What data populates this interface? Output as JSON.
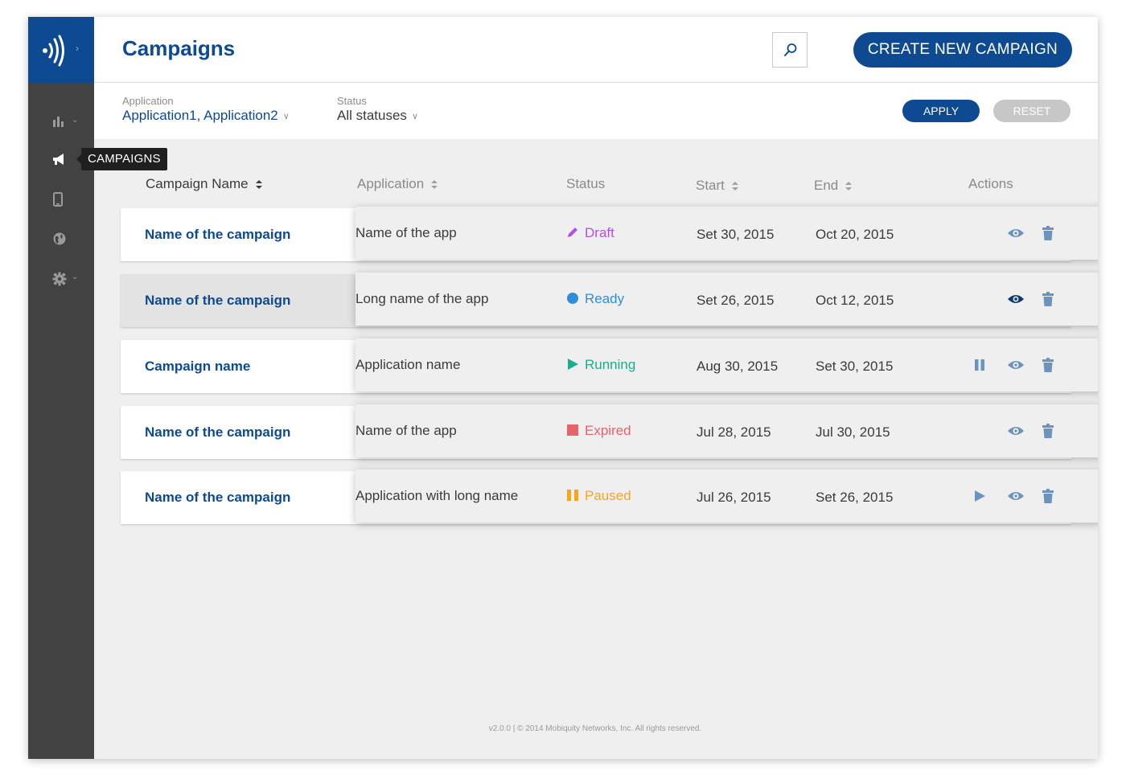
{
  "sidebar": {
    "tooltip": "CAMPAIGNS"
  },
  "header": {
    "title": "Campaigns",
    "create_label": "CREATE NEW CAMPAIGN"
  },
  "filters": {
    "application": {
      "label": "Application",
      "value": "Application1, Application2"
    },
    "status": {
      "label": "Status",
      "value": "All statuses"
    },
    "apply_label": "APPLY",
    "reset_label": "RESET"
  },
  "table": {
    "columns": [
      "Campaign Name",
      "Application",
      "Status",
      "Start",
      "End",
      "Actions"
    ],
    "rows": [
      {
        "name": "Name of the campaign",
        "app": "Name of the app",
        "status": "Draft",
        "start": "Set 30, 2015",
        "end": "Oct 20, 2015"
      },
      {
        "name": "Name of the campaign",
        "app": "Long name of the app",
        "status": "Ready",
        "start": "Set 26, 2015",
        "end": "Oct 12, 2015"
      },
      {
        "name": "Campaign name",
        "app": "Application name",
        "status": "Running",
        "start": "Aug 30, 2015",
        "end": "Set 30, 2015"
      },
      {
        "name": "Name of the campaign",
        "app": "Name of the app",
        "status": "Expired",
        "start": "Jul 28, 2015",
        "end": "Jul 30, 2015"
      },
      {
        "name": "Name of the campaign",
        "app": "Application with long name",
        "status": "Paused",
        "start": "Jul 26, 2015",
        "end": "Set 26, 2015"
      }
    ]
  },
  "status_colors": {
    "Draft": "#b44fe0",
    "Ready": "#2f8ed9",
    "Running": "#1aae8c",
    "Expired": "#e8626b",
    "Paused": "#f5a61c"
  },
  "colors": {
    "brand": "#0d4a91",
    "sidebar": "#424242",
    "action_icon": "#6b93bd"
  },
  "footer": "v2.0.0  |  © 2014 Mobiquity Networks, Inc. All rights reserved."
}
